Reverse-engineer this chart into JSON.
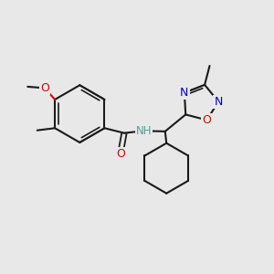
{
  "bg": "#e8e8e8",
  "bc": "#1a1a1a",
  "oc": "#dd0000",
  "nc": "#0000cc",
  "nhc": "#5a9a9a",
  "figsize": [
    3.0,
    3.0
  ],
  "dpi": 100,
  "xlim": [
    0,
    10
  ],
  "ylim": [
    0,
    10
  ]
}
